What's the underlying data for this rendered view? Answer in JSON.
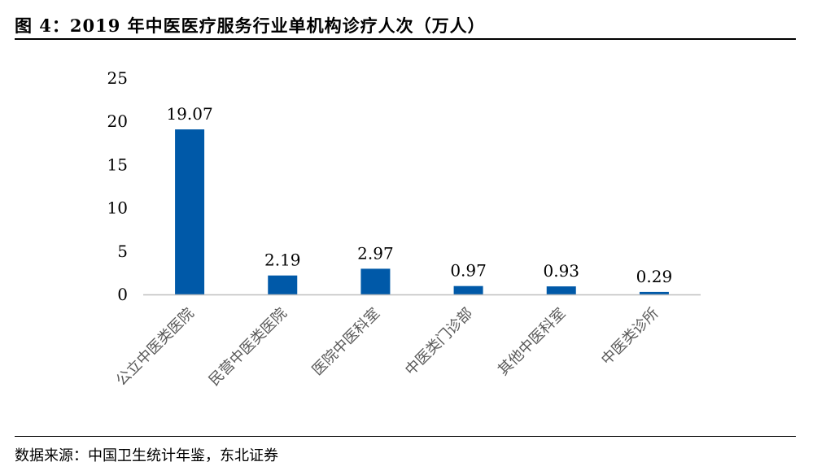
{
  "figure": {
    "title": "图 4：2019 年中医医疗服务行业单机构诊疗人次（万人）",
    "source": "数据来源：中国卫生统计年鉴，东北证券"
  },
  "chart_data": {
    "type": "bar",
    "categories": [
      "公立中医类医院",
      "民营中医类医院",
      "医院中医科室",
      "中医类门诊部",
      "其他中医科室",
      "中医类诊所"
    ],
    "values": [
      19.07,
      2.19,
      2.97,
      0.97,
      0.93,
      0.29
    ],
    "value_labels": [
      "19.07",
      "2.19",
      "2.97",
      "0.97",
      "0.93",
      "0.29"
    ],
    "yticks": [
      0,
      5,
      10,
      15,
      20,
      25
    ],
    "ylim": [
      0,
      25
    ],
    "grid": false,
    "legend": "none",
    "colors": {
      "bar": "#0059a8",
      "axis": "#bfbfbf",
      "category_text": "#595959"
    }
  }
}
